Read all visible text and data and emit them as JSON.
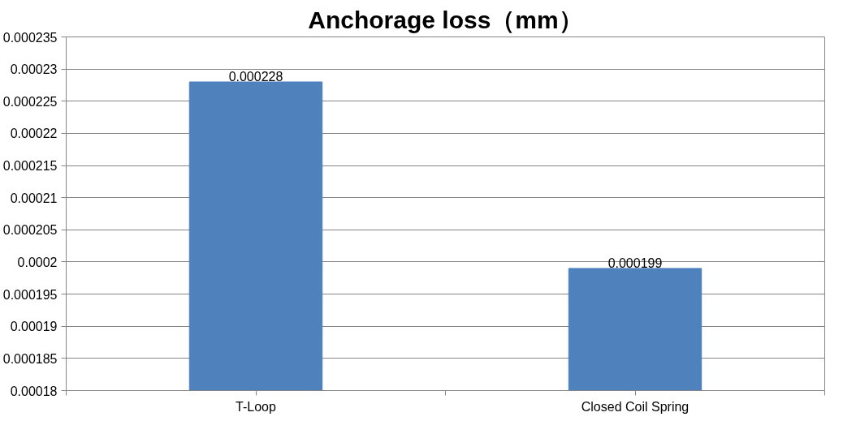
{
  "chart_data": {
    "type": "bar",
    "title": "Anchorage loss（mm）",
    "categories": [
      "T-Loop",
      "Closed Coil Spring"
    ],
    "values": [
      0.000228,
      0.000199
    ],
    "color": "#4f81bd",
    "ylim": [
      0.00018,
      0.000235
    ],
    "yticks": [
      0.00018,
      0.000185,
      0.00019,
      0.000195,
      0.0002,
      0.000205,
      0.00021,
      0.000215,
      0.00022,
      0.000225,
      0.00023,
      0.000235
    ],
    "grid": "y",
    "data_labels": true
  }
}
